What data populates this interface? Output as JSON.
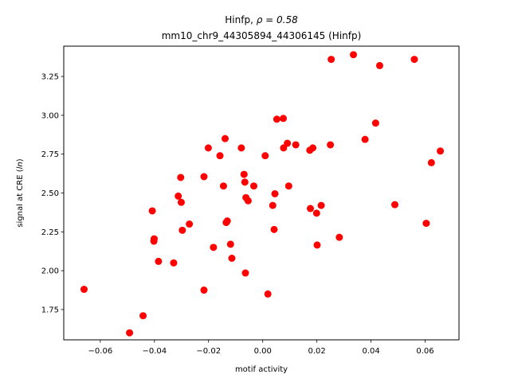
{
  "chart_data": {
    "type": "scatter",
    "title_prefix": "Hinfp, ",
    "title_rho": "ρ = 0.58",
    "subtitle": "mm10_chr9_44305894_44306145 (Hinfp)",
    "xlabel": "motif activity",
    "ylabel_prefix": "signal at CRE (",
    "ylabel_italic": "ln",
    "ylabel_suffix": ")",
    "xlim": [
      -0.0735,
      0.0725
    ],
    "ylim": [
      1.555,
      3.445
    ],
    "xticks": [
      -0.06,
      -0.04,
      -0.02,
      0.0,
      0.02,
      0.04,
      0.06
    ],
    "xtick_labels": [
      "−0.06",
      "−0.04",
      "−0.02",
      "0.00",
      "0.02",
      "0.04",
      "0.06"
    ],
    "yticks": [
      1.75,
      2.0,
      2.25,
      2.5,
      2.75,
      3.0,
      3.25
    ],
    "ytick_labels": [
      "1.75",
      "2.00",
      "2.25",
      "2.50",
      "2.75",
      "3.00",
      "3.25"
    ],
    "marker_color": "#ff0000",
    "grid": false,
    "points": [
      {
        "x": -0.066,
        "y": 1.88
      },
      {
        "x": -0.0492,
        "y": 1.6
      },
      {
        "x": -0.0442,
        "y": 1.71
      },
      {
        "x": -0.0408,
        "y": 2.385
      },
      {
        "x": -0.0402,
        "y": 2.19
      },
      {
        "x": -0.0401,
        "y": 2.205
      },
      {
        "x": -0.0385,
        "y": 2.06
      },
      {
        "x": -0.0329,
        "y": 2.05
      },
      {
        "x": -0.0312,
        "y": 2.48
      },
      {
        "x": -0.0303,
        "y": 2.6
      },
      {
        "x": -0.0301,
        "y": 2.44
      },
      {
        "x": -0.0297,
        "y": 2.26
      },
      {
        "x": -0.0271,
        "y": 2.3
      },
      {
        "x": -0.0217,
        "y": 2.605
      },
      {
        "x": -0.0217,
        "y": 1.875
      },
      {
        "x": -0.0201,
        "y": 2.79
      },
      {
        "x": -0.0182,
        "y": 2.15
      },
      {
        "x": -0.0158,
        "y": 2.74
      },
      {
        "x": -0.0145,
        "y": 2.545
      },
      {
        "x": -0.0139,
        "y": 2.85
      },
      {
        "x": -0.0135,
        "y": 2.31
      },
      {
        "x": -0.0131,
        "y": 2.32
      },
      {
        "x": -0.0119,
        "y": 2.17
      },
      {
        "x": -0.0114,
        "y": 2.08
      },
      {
        "x": -0.0079,
        "y": 2.79
      },
      {
        "x": -0.0069,
        "y": 2.62
      },
      {
        "x": -0.0066,
        "y": 2.57
      },
      {
        "x": -0.0064,
        "y": 1.985
      },
      {
        "x": -0.0062,
        "y": 2.47
      },
      {
        "x": -0.0054,
        "y": 2.45
      },
      {
        "x": -0.0033,
        "y": 2.545
      },
      {
        "x": 0.0009,
        "y": 2.74
      },
      {
        "x": 0.0019,
        "y": 1.85
      },
      {
        "x": 0.0037,
        "y": 2.42
      },
      {
        "x": 0.0042,
        "y": 2.265
      },
      {
        "x": 0.0045,
        "y": 2.495
      },
      {
        "x": 0.0052,
        "y": 2.975
      },
      {
        "x": 0.0076,
        "y": 2.98
      },
      {
        "x": 0.0077,
        "y": 2.79
      },
      {
        "x": 0.0091,
        "y": 2.82
      },
      {
        "x": 0.0096,
        "y": 2.545
      },
      {
        "x": 0.0122,
        "y": 2.81
      },
      {
        "x": 0.0174,
        "y": 2.775
      },
      {
        "x": 0.0176,
        "y": 2.4
      },
      {
        "x": 0.0185,
        "y": 2.79
      },
      {
        "x": 0.0199,
        "y": 2.37
      },
      {
        "x": 0.0201,
        "y": 2.165
      },
      {
        "x": 0.0216,
        "y": 2.42
      },
      {
        "x": 0.025,
        "y": 2.81
      },
      {
        "x": 0.0253,
        "y": 3.36
      },
      {
        "x": 0.0283,
        "y": 2.215
      },
      {
        "x": 0.0335,
        "y": 3.39
      },
      {
        "x": 0.0378,
        "y": 2.845
      },
      {
        "x": 0.0417,
        "y": 2.95
      },
      {
        "x": 0.0432,
        "y": 3.32
      },
      {
        "x": 0.0488,
        "y": 2.425
      },
      {
        "x": 0.056,
        "y": 3.36
      },
      {
        "x": 0.0604,
        "y": 2.305
      },
      {
        "x": 0.0623,
        "y": 2.695
      },
      {
        "x": 0.0656,
        "y": 2.77
      }
    ]
  }
}
